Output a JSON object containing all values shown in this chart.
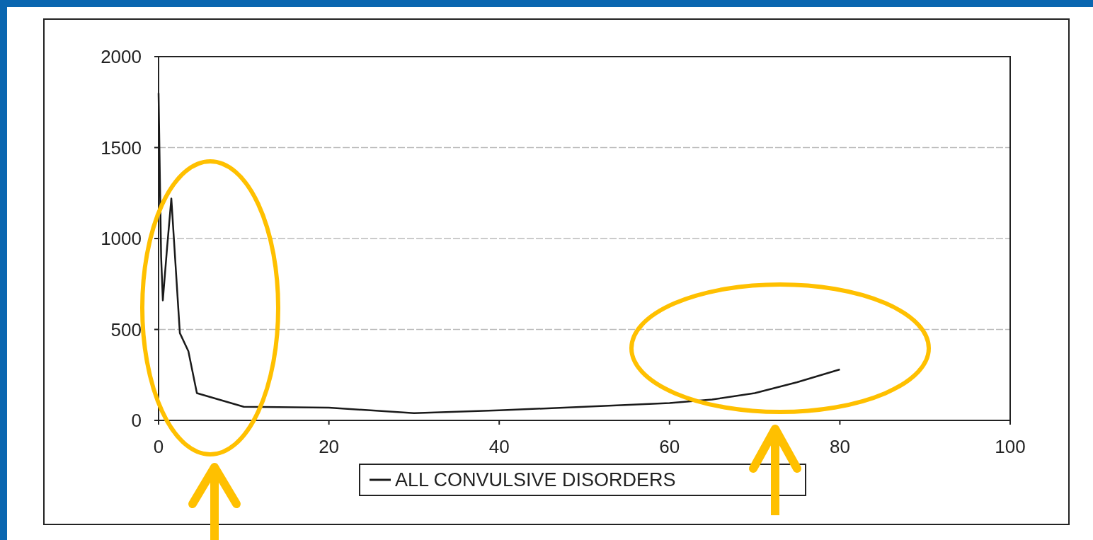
{
  "chart_data": {
    "type": "line",
    "series": [
      {
        "name": "ALL CONVULSIVE DISORDERS",
        "color": "#1a1a1a",
        "x": [
          0,
          0.3,
          0.5,
          1,
          1.5,
          2.5,
          3.5,
          4.5,
          10,
          20,
          30,
          40,
          50,
          60,
          65,
          70,
          75,
          80
        ],
        "values": [
          1800,
          900,
          660,
          950,
          1220,
          480,
          380,
          150,
          75,
          70,
          40,
          55,
          75,
          95,
          115,
          150,
          210,
          280
        ]
      }
    ],
    "xlim": [
      0,
      100
    ],
    "xticks": [
      0,
      20,
      40,
      60,
      80,
      100
    ],
    "ylim": [
      0,
      2000
    ],
    "yticks": [
      0,
      500,
      1000,
      1500,
      2000
    ],
    "grid": "y",
    "legend": "bottom",
    "marker": "none",
    "line_style": "solid"
  }
}
